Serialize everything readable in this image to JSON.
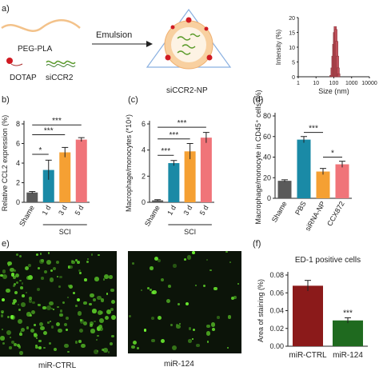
{
  "panels": {
    "a": {
      "label": "a)",
      "materials": [
        "PEG-PLA",
        "DOTAP",
        "siCCR2"
      ],
      "process": "Emulsion",
      "product": "siCCR2-NP"
    },
    "e": {
      "label": "e)",
      "images": [
        "miR-CTRL",
        "miR-124"
      ]
    }
  },
  "chart_data": [
    {
      "id": "a-inset",
      "type": "bar",
      "xlabel": "Size (nm)",
      "ylabel": "Intensity (%)",
      "xlim": [
        1,
        10000
      ],
      "xscale": "log",
      "xticks": [
        "1",
        "10",
        "100",
        "1000",
        "10000"
      ],
      "ylim": [
        0,
        20
      ],
      "yticks": [
        "0",
        "5",
        "10",
        "15",
        "20"
      ],
      "x": [
        70,
        80,
        90,
        100,
        110,
        120,
        130,
        145,
        160,
        175,
        190
      ],
      "values": [
        0.5,
        3,
        7,
        11,
        15,
        17,
        16,
        12,
        7,
        3,
        1
      ],
      "color": "#c0505a"
    },
    {
      "id": "b",
      "label": "b)",
      "type": "bar",
      "ylabel": "Relative CCL2 expression (%)",
      "categories": [
        "Shame",
        "1 d",
        "3 d",
        "5 d"
      ],
      "values": [
        1.0,
        3.3,
        5.1,
        6.4
      ],
      "errors": [
        0.1,
        1.0,
        0.5,
        0.2
      ],
      "colors": [
        "#5a5a5a",
        "#1a8aa6",
        "#f5a033",
        "#f07479"
      ],
      "ylim": [
        0,
        8
      ],
      "yticks": [
        "0",
        "2",
        "4",
        "6",
        "8"
      ],
      "group_label": "SCI",
      "significance": [
        "*",
        "***",
        "***"
      ]
    },
    {
      "id": "c",
      "label": "(c)",
      "type": "bar",
      "ylabel": "Macrophage/monocytes (*10⁴)",
      "categories": [
        "Shame",
        "1 d",
        "3 d",
        "5 d"
      ],
      "values": [
        0.15,
        3.0,
        3.9,
        4.95
      ],
      "errors": [
        0.05,
        0.2,
        0.6,
        0.4
      ],
      "colors": [
        "#5a5a5a",
        "#1a8aa6",
        "#f5a033",
        "#f07479"
      ],
      "ylim": [
        0,
        6
      ],
      "yticks": [
        "0",
        "2",
        "4",
        "6"
      ],
      "group_label": "SCI",
      "significance": [
        "***",
        "***",
        "***"
      ]
    },
    {
      "id": "d",
      "label": "(d)",
      "type": "bar",
      "ylabel": "Macrophage/monocyte in CD45⁺ cells (%)",
      "categories": [
        "Shame",
        "PBS",
        "siRNA-NP",
        "CCX872"
      ],
      "values": [
        17,
        57,
        26,
        33
      ],
      "errors": [
        1,
        3,
        3,
        3
      ],
      "colors": [
        "#5a5a5a",
        "#1a8aa6",
        "#f5a033",
        "#f07479"
      ],
      "ylim": [
        0,
        80
      ],
      "yticks": [
        "0",
        "20",
        "40",
        "60",
        "80"
      ],
      "significance": [
        "***",
        "*"
      ]
    },
    {
      "id": "f",
      "label": "(f)",
      "type": "bar",
      "title": "ED-1 positive cells",
      "ylabel": "Area of staining (%)",
      "categories": [
        "miR-CTRL",
        "miR-124"
      ],
      "values": [
        0.068,
        0.029
      ],
      "errors": [
        0.006,
        0.003
      ],
      "colors": [
        "#8b1a1a",
        "#1f6a1f"
      ],
      "ylim": [
        0,
        0.08
      ],
      "yticks": [
        "0.00",
        "0.02",
        "0.04",
        "0.06",
        "0.08"
      ],
      "significance": [
        "***"
      ]
    }
  ]
}
